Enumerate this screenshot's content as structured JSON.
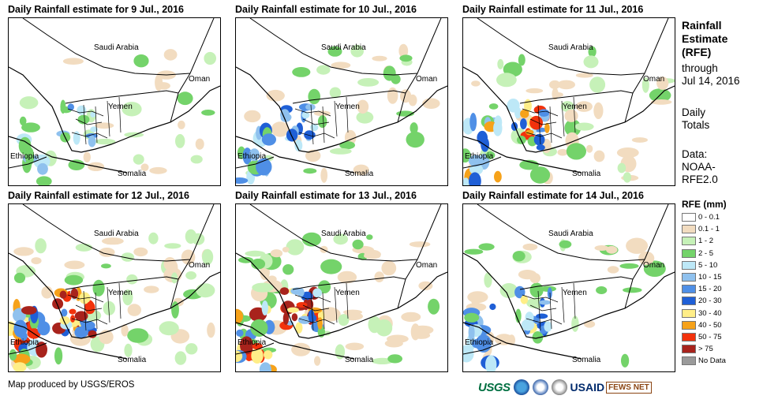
{
  "panels": [
    {
      "title": "Daily Rainfall estimate for 9 Jul., 2016",
      "intensity": 1
    },
    {
      "title": "Daily Rainfall estimate for 10 Jul., 2016",
      "intensity": 2
    },
    {
      "title": "Daily Rainfall estimate for 11 Jul., 2016",
      "intensity": 3
    },
    {
      "title": "Daily Rainfall estimate for 12 Jul., 2016",
      "intensity": 4
    },
    {
      "title": "Daily Rainfall estimate for 13 Jul., 2016",
      "intensity": 4
    },
    {
      "title": "Daily Rainfall estimate for 14 Jul., 2016",
      "intensity": 2
    }
  ],
  "map_labels": {
    "saudi": "Saudi Arabia",
    "oman": "Oman",
    "yemen": "Yemen",
    "ethiopia": "Ethiopia",
    "somalia": "Somalia"
  },
  "sidebar": {
    "title_line1": "Rainfall",
    "title_line2": "Estimate",
    "title_line3": "(RFE)",
    "through_label": "through",
    "through_date": "Jul 14, 2016",
    "daily_line1": "Daily",
    "daily_line2": "Totals",
    "data_line1": "Data:",
    "data_line2": "NOAA-",
    "data_line3": "RFE2.0"
  },
  "legend": {
    "title": "RFE (mm)",
    "items": [
      {
        "label": "0 - 0.1",
        "color": "#ffffff"
      },
      {
        "label": "0.1 - 1",
        "color": "#f2dcc0"
      },
      {
        "label": "1 - 2",
        "color": "#c6f1b8"
      },
      {
        "label": "2 - 5",
        "color": "#74d36a"
      },
      {
        "label": "5 - 10",
        "color": "#bde8f7"
      },
      {
        "label": "10 - 15",
        "color": "#8fc1ee"
      },
      {
        "label": "15 - 20",
        "color": "#4f8fe6"
      },
      {
        "label": "20 - 30",
        "color": "#1f5fd6"
      },
      {
        "label": "30 - 40",
        "color": "#ffee88"
      },
      {
        "label": "40 - 50",
        "color": "#f6a21a"
      },
      {
        "label": "50 - 75",
        "color": "#f2320c"
      },
      {
        "label": "> 75",
        "color": "#a8231c"
      },
      {
        "label": "No Data",
        "color": "#9a9a9a"
      }
    ]
  },
  "credit": "Map produced by USGS/EROS",
  "logos": {
    "usgs": "USGS",
    "usaid": "USAID",
    "fews": "FEWS NET"
  }
}
